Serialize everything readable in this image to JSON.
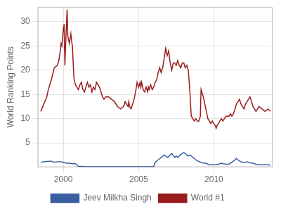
{
  "chart_data": {
    "type": "line",
    "ylabel": "World Ranking Points",
    "series": [
      {
        "name": "Jeev Milkha Singh",
        "color": "#3a5fa0",
        "x": [
          1998.5,
          1998.7,
          1999.0,
          1999.2,
          1999.4,
          1999.6,
          1999.8,
          2000.0,
          2000.2,
          2000.4,
          2000.6,
          2000.8,
          2001.0,
          2001.5,
          2002.0,
          2002.5,
          2003.0,
          2003.5,
          2004.0,
          2004.5,
          2005.0,
          2005.5,
          2006.0,
          2006.1,
          2006.3,
          2006.5,
          2006.7,
          2006.8,
          2006.9,
          2007.0,
          2007.1,
          2007.2,
          2007.3,
          2007.4,
          2007.5,
          2007.6,
          2007.7,
          2007.8,
          2007.9,
          2008.0,
          2008.1,
          2008.2,
          2008.3,
          2008.4,
          2008.5,
          2008.6,
          2008.7,
          2008.8,
          2008.9,
          2009.0,
          2009.1,
          2009.2,
          2009.3,
          2009.4,
          2009.5,
          2009.6,
          2009.7,
          2009.8,
          2009.9,
          2010.0,
          2010.2,
          2010.4,
          2010.5,
          2010.6,
          2010.8,
          2011.0,
          2011.2,
          2011.4,
          2011.5,
          2011.6,
          2011.7,
          2011.8,
          2011.9,
          2012.0,
          2012.1,
          2012.2,
          2012.4,
          2012.6,
          2012.8,
          2013.0,
          2013.2,
          2013.4,
          2013.6,
          2013.75
        ],
        "values": [
          1.0,
          1.1,
          1.2,
          1.2,
          1.0,
          1.1,
          1.1,
          1.0,
          0.8,
          0.8,
          0.7,
          0.7,
          0.2,
          0.1,
          0.1,
          0.1,
          0.1,
          0.1,
          0.1,
          0.1,
          0.1,
          0.1,
          0.1,
          1.0,
          1.5,
          2.0,
          2.5,
          2.3,
          2.0,
          2.2,
          2.5,
          2.8,
          2.5,
          2.0,
          2.3,
          2.0,
          2.3,
          2.6,
          2.8,
          3.0,
          2.8,
          2.5,
          2.3,
          2.5,
          2.3,
          2.0,
          1.8,
          1.5,
          1.3,
          1.2,
          1.0,
          1.0,
          0.8,
          0.8,
          0.8,
          0.6,
          0.5,
          0.5,
          0.5,
          0.5,
          0.5,
          0.7,
          0.8,
          0.7,
          0.6,
          0.6,
          1.0,
          1.5,
          1.8,
          1.5,
          1.3,
          1.1,
          1.0,
          1.0,
          1.0,
          1.1,
          0.9,
          0.8,
          0.6,
          0.5,
          0.5,
          0.5,
          0.5,
          0.4
        ]
      },
      {
        "name": "World #1",
        "color": "#9b1c1c",
        "x": [
          1998.5,
          1998.7,
          1998.9,
          1999.0,
          1999.2,
          1999.4,
          1999.6,
          1999.7,
          1999.8,
          1999.85,
          1999.9,
          2000.0,
          2000.05,
          2000.1,
          2000.2,
          2000.25,
          2000.3,
          2000.4,
          2000.5,
          2000.55,
          2000.6,
          2000.7,
          2000.8,
          2000.9,
          2001.0,
          2001.1,
          2001.2,
          2001.3,
          2001.4,
          2001.5,
          2001.6,
          2001.7,
          2001.8,
          2001.9,
          2002.0,
          2002.1,
          2002.2,
          2002.3,
          2002.4,
          2002.5,
          2002.6,
          2002.7,
          2002.8,
          2003.0,
          2003.2,
          2003.4,
          2003.6,
          2003.8,
          2004.0,
          2004.1,
          2004.2,
          2004.3,
          2004.35,
          2004.4,
          2004.5,
          2004.6,
          2004.7,
          2004.8,
          2004.9,
          2005.0,
          2005.1,
          2005.15,
          2005.2,
          2005.3,
          2005.4,
          2005.5,
          2005.6,
          2005.65,
          2005.7,
          2005.8,
          2005.9,
          2006.0,
          2006.1,
          2006.2,
          2006.3,
          2006.4,
          2006.5,
          2006.6,
          2006.7,
          2006.75,
          2006.8,
          2006.9,
          2007.0,
          2007.05,
          2007.1,
          2007.2,
          2007.3,
          2007.4,
          2007.5,
          2007.6,
          2007.7,
          2007.8,
          2007.9,
          2008.0,
          2008.1,
          2008.2,
          2008.3,
          2008.4,
          2008.45,
          2008.5,
          2008.6,
          2008.7,
          2008.8,
          2008.9,
          2009.0,
          2009.1,
          2009.15,
          2009.2,
          2009.3,
          2009.4,
          2009.5,
          2009.6,
          2009.7,
          2009.8,
          2009.9,
          2010.0,
          2010.1,
          2010.15,
          2010.2,
          2010.3,
          2010.4,
          2010.5,
          2010.6,
          2010.7,
          2010.8,
          2010.9,
          2011.0,
          2011.1,
          2011.2,
          2011.3,
          2011.4,
          2011.5,
          2011.6,
          2011.7,
          2011.8,
          2011.9,
          2012.0,
          2012.1,
          2012.2,
          2012.3,
          2012.4,
          2012.5,
          2012.6,
          2012.7,
          2012.8,
          2012.9,
          2013.0,
          2013.2,
          2013.4,
          2013.6,
          2013.75
        ],
        "values": [
          11.5,
          13.0,
          14.5,
          16.0,
          18.0,
          20.5,
          21.0,
          22.0,
          24.0,
          25.5,
          25.0,
          28.5,
          29.5,
          21.0,
          29.0,
          32.5,
          27.0,
          25.5,
          27.5,
          26.0,
          25.0,
          18.5,
          17.0,
          16.5,
          16.0,
          17.0,
          17.5,
          16.0,
          15.5,
          16.5,
          17.5,
          16.5,
          17.0,
          15.5,
          16.5,
          16.0,
          17.5,
          17.0,
          16.5,
          15.5,
          14.5,
          14.0,
          14.5,
          14.5,
          14.0,
          13.5,
          12.5,
          12.0,
          12.5,
          13.5,
          13.0,
          12.5,
          13.5,
          12.5,
          12.0,
          13.0,
          14.0,
          15.5,
          17.5,
          16.5,
          17.5,
          16.5,
          17.5,
          16.0,
          15.5,
          16.5,
          15.5,
          16.5,
          16.0,
          17.0,
          16.0,
          16.5,
          17.5,
          18.0,
          19.5,
          20.5,
          19.5,
          20.5,
          22.5,
          23.5,
          24.5,
          23.0,
          24.0,
          22.5,
          21.5,
          20.0,
          21.5,
          21.5,
          21.0,
          22.0,
          21.0,
          20.5,
          21.5,
          21.5,
          20.5,
          21.0,
          20.0,
          16.0,
          13.0,
          10.5,
          10.0,
          9.5,
          10.0,
          9.5,
          9.5,
          10.5,
          16.0,
          15.5,
          14.5,
          13.0,
          11.5,
          10.0,
          9.5,
          9.0,
          9.5,
          9.0,
          8.5,
          8.0,
          8.5,
          9.0,
          9.5,
          10.0,
          9.5,
          10.0,
          10.5,
          10.5,
          10.5,
          11.0,
          10.5,
          11.0,
          12.0,
          13.0,
          13.5,
          14.0,
          13.0,
          12.5,
          12.0,
          13.0,
          13.5,
          14.0,
          14.5,
          13.5,
          12.5,
          12.0,
          11.5,
          12.0,
          12.5,
          12.0,
          11.5,
          12.0,
          11.5
        ]
      }
    ],
    "xlim": [
      1998.3,
      2013.9
    ],
    "xticks": [
      2000,
      2005,
      2010
    ],
    "ylim": [
      0,
      33
    ],
    "yticks": [
      5,
      10,
      15,
      20,
      25,
      30
    ],
    "grid": true,
    "legend": "bottom"
  }
}
